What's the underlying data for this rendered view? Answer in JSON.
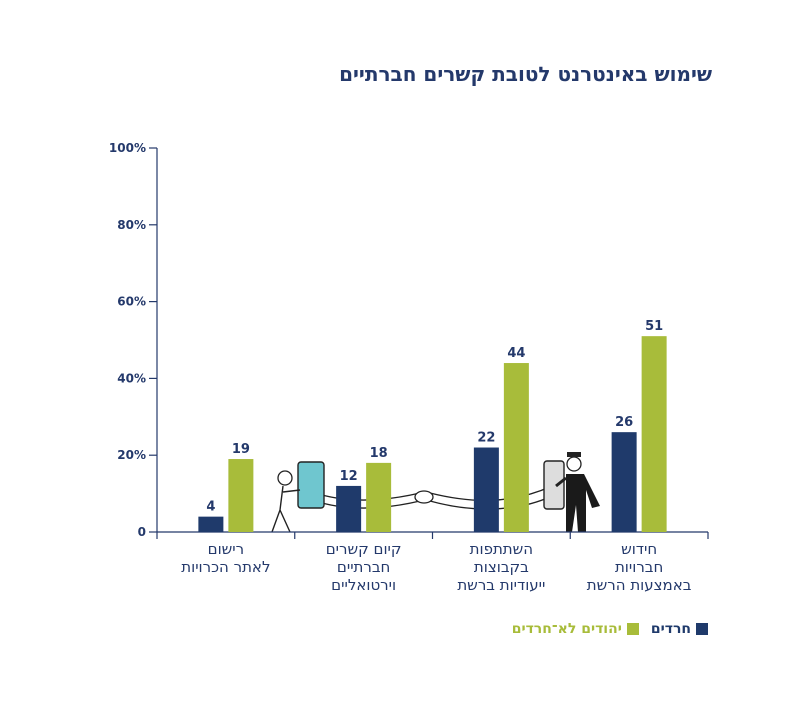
{
  "title": "שימוש באינטרנט לטובת קשרים חברתיים",
  "colors": {
    "haredi": "#1f3a6b",
    "nonharedi": "#a8bc3a",
    "axis": "#24396b",
    "label": "#24396b"
  },
  "chart_data": {
    "type": "bar",
    "title": "שימוש באינטרנט לטובת קשרים חברתיים",
    "categories": [
      [
        "רישום",
        "לאתר הכרויות"
      ],
      [
        "קיום קשרים",
        "חברתיים",
        "וירטואליים"
      ],
      [
        "השתתפות",
        "בקבוצות",
        "ייעודיות ברשת"
      ],
      [
        "חידוש",
        "חברויות",
        "באמצעות הרשת"
      ]
    ],
    "series": [
      {
        "name": "חרדים",
        "values": [
          4,
          12,
          22,
          26
        ]
      },
      {
        "name": "יהודים לא־חרדים",
        "values": [
          19,
          18,
          44,
          51
        ]
      }
    ],
    "yticks": [
      "0",
      "20%",
      "40%",
      "60%",
      "80%",
      "100%"
    ],
    "ylim": [
      0,
      100
    ],
    "legend": "bottom-right",
    "grid": false
  },
  "legend": {
    "haredi": "חרדים",
    "nonharedi": "יהודים לא־חרדים"
  },
  "illustration": "hands-reaching-through-phones"
}
